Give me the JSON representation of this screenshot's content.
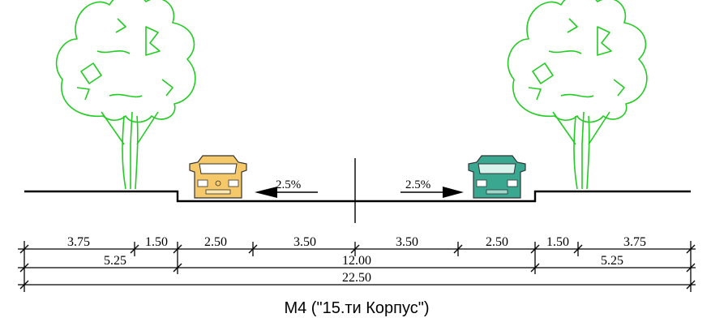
{
  "diagram": {
    "caption": "M4  (\"15.ти Корпус\")",
    "slope_left": "2.5%",
    "slope_right": "2.5%",
    "dimensions_row1": [
      "3.75",
      "1.50",
      "2.50",
      "3.50",
      "3.50",
      "2.50",
      "1.50",
      "3.75"
    ],
    "dimensions_row2": [
      "5.25",
      "12.00",
      "5.25"
    ],
    "dimension_total": "22.50",
    "colors": {
      "tree": "#22cc22",
      "car_left": "#f5c96a",
      "car_right": "#3aa890",
      "line": "#000000"
    },
    "icons": [
      "tree-icon",
      "car-icon",
      "arrow-left-icon",
      "arrow-right-icon"
    ]
  }
}
